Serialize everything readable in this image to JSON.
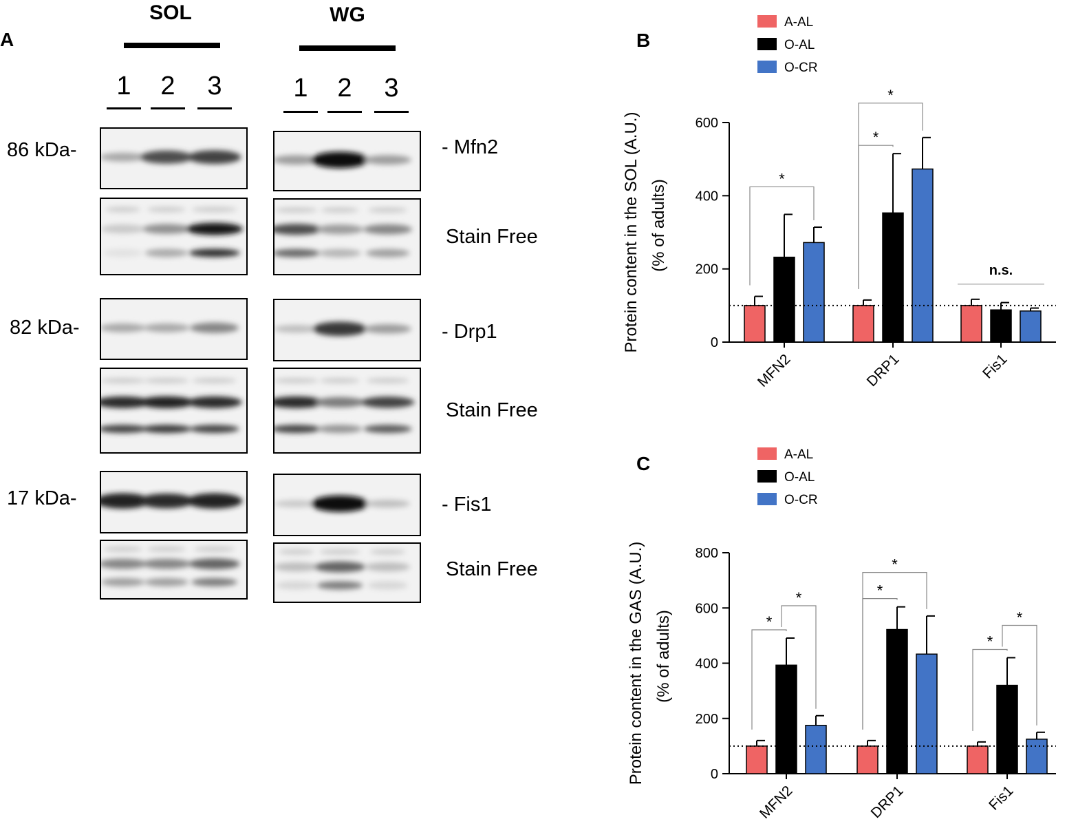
{
  "panelA": {
    "letter": "A",
    "groups": [
      {
        "label": "SOL",
        "lanes": [
          "1",
          "2",
          "3"
        ]
      },
      {
        "label": "WG",
        "lanes": [
          "1",
          "2",
          "3"
        ]
      }
    ],
    "rows": [
      {
        "kda": "86 kDa-",
        "protein": "- Mfn2",
        "stain": "Stain Free"
      },
      {
        "kda": "82 kDa-",
        "protein": "- Drp1",
        "stain": "Stain Free"
      },
      {
        "kda": "17 kDa-",
        "protein": "- Fis1",
        "stain": "Stain Free"
      }
    ],
    "band_intensity": {
      "SOL_Mfn2": [
        0.3,
        0.7,
        0.75
      ],
      "WG_Mfn2": [
        0.35,
        1.0,
        0.35
      ],
      "SOL_Drp1": [
        0.3,
        0.3,
        0.45
      ],
      "WG_Drp1": [
        0.2,
        0.8,
        0.35
      ],
      "SOL_Fis1": [
        0.9,
        0.85,
        0.9
      ],
      "WG_Fis1": [
        0.15,
        1.0,
        0.2
      ],
      "SOL_Stain1": [
        0.15,
        0.4,
        0.95
      ],
      "WG_Stain1": [
        0.7,
        0.35,
        0.45
      ],
      "SOL_Stain2": [
        0.85,
        0.9,
        0.85
      ],
      "WG_Stain2": [
        0.85,
        0.5,
        0.75
      ],
      "SOL_Stain3": [
        0.45,
        0.45,
        0.6
      ],
      "WG_Stain3": [
        0.2,
        0.6,
        0.2
      ]
    }
  },
  "chart_data": [
    {
      "panel": "B",
      "type": "bar",
      "categories": [
        "MFN2",
        "DRP1",
        "Fis1"
      ],
      "ylabel_line1": "Protein content  in the SOL (A.U.)",
      "ylabel_line2": "(% of adults)",
      "ylim": [
        0,
        600
      ],
      "yticks": [
        "0",
        "200",
        "400",
        "600"
      ],
      "reference_line": 100,
      "legend": [
        "A-AL",
        "O-AL",
        "O-CR"
      ],
      "series": [
        {
          "name": "A-AL",
          "color": "#ef6464",
          "values": [
            100,
            100,
            100
          ],
          "errors": [
            25,
            15,
            17
          ]
        },
        {
          "name": "O-AL",
          "color": "#000000",
          "values": [
            232,
            353,
            88
          ],
          "errors": [
            117,
            162,
            20
          ]
        },
        {
          "name": "O-CR",
          "color": "#4274c6",
          "values": [
            272,
            473,
            85
          ],
          "errors": [
            42,
            86,
            8
          ]
        }
      ],
      "significance": [
        {
          "category": "MFN2",
          "from": "A-AL",
          "to": "O-CR",
          "label": "*"
        },
        {
          "category": "DRP1",
          "from": "A-AL",
          "to": "O-AL",
          "label": "*"
        },
        {
          "category": "DRP1",
          "from": "A-AL",
          "to": "O-CR",
          "label": "*"
        },
        {
          "category": "Fis1",
          "from": "A-AL",
          "to": "O-CR",
          "label": "n.s."
        }
      ]
    },
    {
      "panel": "C",
      "type": "bar",
      "categories": [
        "MFN2",
        "DRP1",
        "Fis1"
      ],
      "ylabel_line1": "Protein content in the GAS (A.U.)",
      "ylabel_line2": "(% of adults)",
      "ylim": [
        0,
        800
      ],
      "yticks": [
        "0",
        "200",
        "400",
        "600",
        "800"
      ],
      "reference_line": 100,
      "legend": [
        "A-AL",
        "O-AL",
        "O-CR"
      ],
      "series": [
        {
          "name": "A-AL",
          "color": "#ef6464",
          "values": [
            100,
            100,
            100
          ],
          "errors": [
            20,
            20,
            15
          ]
        },
        {
          "name": "O-AL",
          "color": "#000000",
          "values": [
            393,
            522,
            320
          ],
          "errors": [
            98,
            82,
            100
          ]
        },
        {
          "name": "O-CR",
          "color": "#4274c6",
          "values": [
            175,
            433,
            125
          ],
          "errors": [
            35,
            138,
            25
          ]
        }
      ],
      "significance": [
        {
          "category": "MFN2",
          "from": "A-AL",
          "to": "O-AL",
          "label": "*"
        },
        {
          "category": "MFN2",
          "from": "O-AL",
          "to": "O-CR",
          "label": "*"
        },
        {
          "category": "DRP1",
          "from": "A-AL",
          "to": "O-AL",
          "label": "*"
        },
        {
          "category": "DRP1",
          "from": "A-AL",
          "to": "O-CR",
          "label": "*"
        },
        {
          "category": "Fis1",
          "from": "A-AL",
          "to": "O-AL",
          "label": "*"
        },
        {
          "category": "Fis1",
          "from": "O-AL",
          "to": "O-CR",
          "label": "*"
        }
      ]
    }
  ]
}
